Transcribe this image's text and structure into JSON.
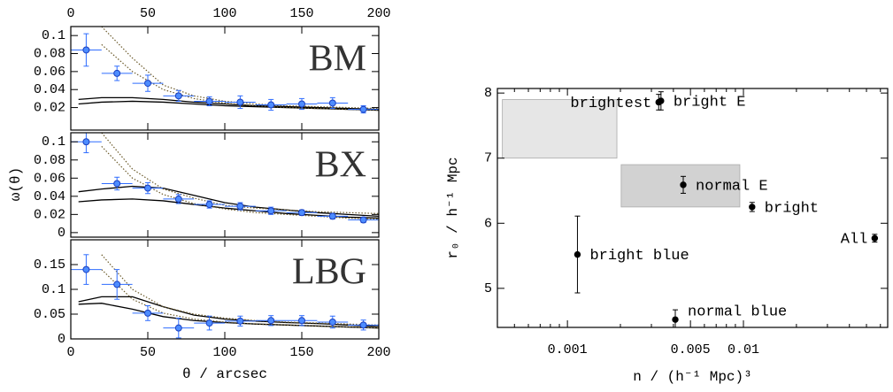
{
  "chart_data": [
    {
      "type": "scatter",
      "panel_label": "BM",
      "xlim": [
        0,
        200
      ],
      "xticks": [
        0,
        50,
        100,
        150,
        200
      ],
      "ylim": [
        -0.005,
        0.11
      ],
      "yticks": [
        0.02,
        0.04,
        0.06,
        0.08,
        0.1
      ],
      "show_top_labels": true,
      "show_bottom_labels": false,
      "points": {
        "color": "#2f6dff",
        "x": [
          10,
          30,
          50,
          70,
          90,
          110,
          130,
          150,
          170,
          190
        ],
        "x_err": [
          10,
          10,
          10,
          10,
          10,
          10,
          10,
          10,
          10,
          10
        ],
        "y": [
          0.084,
          0.058,
          0.047,
          0.033,
          0.027,
          0.026,
          0.023,
          0.024,
          0.025,
          0.018
        ],
        "y_err": [
          0.018,
          0.008,
          0.009,
          0.006,
          0.005,
          0.007,
          0.006,
          0.006,
          0.006,
          0.004
        ]
      },
      "models": [
        {
          "style": "solid",
          "color": "#000000",
          "x": [
            5,
            20,
            40,
            60,
            80,
            100,
            120,
            140,
            160,
            180,
            200
          ],
          "values": [
            0.029,
            0.031,
            0.031,
            0.029,
            0.026,
            0.024,
            0.022,
            0.021,
            0.02,
            0.019,
            0.018
          ]
        },
        {
          "style": "solid",
          "color": "#000000",
          "x": [
            5,
            20,
            40,
            60,
            80,
            100,
            120,
            140,
            160,
            180,
            200
          ],
          "values": [
            0.024,
            0.026,
            0.027,
            0.026,
            0.024,
            0.022,
            0.021,
            0.02,
            0.019,
            0.018,
            0.017
          ]
        },
        {
          "style": "dotted",
          "color": "#6b5a2a",
          "x": [
            5,
            20,
            40,
            60,
            80,
            100,
            120,
            140,
            160,
            180,
            200
          ],
          "values": [
            null,
            0.11,
            0.075,
            0.045,
            0.033,
            0.027,
            0.024,
            0.022,
            0.021,
            0.02,
            0.019
          ]
        },
        {
          "style": "dotted",
          "color": "#6b5a2a",
          "x": [
            5,
            20,
            40,
            60,
            80,
            100,
            120,
            140,
            160,
            180,
            200
          ],
          "values": [
            null,
            0.09,
            0.06,
            0.04,
            0.03,
            0.025,
            0.022,
            0.02,
            0.019,
            0.018,
            0.017
          ]
        }
      ]
    },
    {
      "type": "scatter",
      "panel_label": "BX",
      "y_label": "ω(θ)",
      "xlim": [
        0,
        200
      ],
      "xticks": [
        0,
        50,
        100,
        150,
        200
      ],
      "ylim": [
        -0.005,
        0.11
      ],
      "yticks": [
        0,
        0.02,
        0.04,
        0.06,
        0.08,
        0.1
      ],
      "show_top_labels": false,
      "show_bottom_labels": false,
      "points": {
        "color": "#2f6dff",
        "x": [
          10,
          30,
          50,
          70,
          90,
          110,
          130,
          150,
          170,
          190
        ],
        "x_err": [
          10,
          10,
          10,
          10,
          10,
          10,
          10,
          10,
          10,
          10
        ],
        "y": [
          0.1,
          0.054,
          0.049,
          0.037,
          0.031,
          0.029,
          0.024,
          0.022,
          0.018,
          0.014
        ],
        "y_err": [
          0.012,
          0.007,
          0.006,
          0.005,
          0.004,
          0.004,
          0.004,
          0.003,
          0.003,
          0.003
        ]
      },
      "models": [
        {
          "style": "solid",
          "color": "#000000",
          "x": [
            5,
            20,
            40,
            60,
            80,
            100,
            120,
            140,
            160,
            180,
            200
          ],
          "values": [
            0.045,
            0.048,
            0.051,
            0.049,
            0.041,
            0.033,
            0.028,
            0.025,
            0.022,
            0.02,
            0.018
          ]
        },
        {
          "style": "solid",
          "color": "#000000",
          "x": [
            5,
            20,
            40,
            60,
            80,
            100,
            120,
            140,
            160,
            180,
            200
          ],
          "values": [
            0.034,
            0.036,
            0.037,
            0.035,
            0.031,
            0.027,
            0.024,
            0.021,
            0.019,
            0.017,
            0.016
          ]
        },
        {
          "style": "dotted",
          "color": "#6b5a2a",
          "x": [
            5,
            20,
            40,
            60,
            80,
            100,
            120,
            140,
            160,
            180,
            200
          ],
          "values": [
            null,
            0.11,
            0.07,
            0.048,
            0.038,
            0.03,
            0.027,
            0.025,
            0.023,
            0.022,
            0.021
          ]
        },
        {
          "style": "dotted",
          "color": "#6b5a2a",
          "x": [
            5,
            20,
            40,
            60,
            80,
            100,
            120,
            140,
            160,
            180,
            200
          ],
          "values": [
            null,
            0.095,
            0.06,
            0.042,
            0.032,
            0.026,
            0.022,
            0.02,
            0.018,
            0.016,
            0.015
          ]
        }
      ]
    },
    {
      "type": "scatter",
      "panel_label": "LBG",
      "x_label": "θ / arcsec",
      "xlim": [
        0,
        200
      ],
      "xticks": [
        0,
        50,
        100,
        150,
        200
      ],
      "ylim": [
        0,
        0.2
      ],
      "yticks": [
        0,
        0.05,
        0.1,
        0.15
      ],
      "show_top_labels": false,
      "show_bottom_labels": true,
      "points": {
        "color": "#2f6dff",
        "x": [
          10,
          30,
          50,
          70,
          90,
          110,
          130,
          150,
          170,
          190
        ],
        "x_err": [
          10,
          10,
          10,
          10,
          10,
          10,
          10,
          10,
          10,
          10
        ],
        "y": [
          0.14,
          0.11,
          0.052,
          0.022,
          0.032,
          0.036,
          0.037,
          0.037,
          0.034,
          0.028
        ],
        "y_err": [
          0.03,
          0.03,
          0.015,
          0.02,
          0.014,
          0.01,
          0.01,
          0.01,
          0.012,
          0.01
        ]
      },
      "models": [
        {
          "style": "solid",
          "color": "#000000",
          "x": [
            5,
            20,
            40,
            60,
            80,
            100,
            120,
            140,
            160,
            180,
            200
          ],
          "values": [
            0.075,
            0.085,
            0.085,
            0.065,
            0.048,
            0.04,
            0.036,
            0.033,
            0.031,
            0.028,
            0.025
          ]
        },
        {
          "style": "solid",
          "color": "#000000",
          "x": [
            5,
            20,
            40,
            60,
            80,
            100,
            120,
            140,
            160,
            180,
            200
          ],
          "values": [
            0.07,
            0.072,
            0.06,
            0.045,
            0.037,
            0.033,
            0.03,
            0.028,
            0.026,
            0.024,
            0.022
          ]
        },
        {
          "style": "dotted",
          "color": "#6b5a2a",
          "x": [
            5,
            20,
            40,
            60,
            80,
            100,
            120,
            140,
            160,
            180,
            200
          ],
          "values": [
            null,
            0.17,
            0.1,
            0.065,
            0.05,
            0.042,
            0.037,
            0.034,
            0.032,
            0.03,
            0.028
          ]
        },
        {
          "style": "dotted",
          "color": "#6b5a2a",
          "x": [
            5,
            20,
            40,
            60,
            80,
            100,
            120,
            140,
            160,
            180,
            200
          ],
          "values": [
            null,
            0.14,
            0.08,
            0.052,
            0.04,
            0.034,
            0.03,
            0.028,
            0.026,
            0.024,
            0.022
          ]
        }
      ]
    },
    {
      "type": "scatter",
      "log_x": true,
      "x_label": "n / (h⁻¹ Mpc)³",
      "y_label": "r₀ / h⁻¹ Mpc",
      "xlim": [
        0.0004,
        0.066
      ],
      "xticks": [
        0.001,
        0.005,
        0.01
      ],
      "xminor_ticks": [
        0.0005,
        0.0006,
        0.0007,
        0.0008,
        0.0009,
        0.002,
        0.003,
        0.004,
        0.006,
        0.007,
        0.008,
        0.009,
        0.02,
        0.03,
        0.04,
        0.05,
        0.06
      ],
      "ylim": [
        4.4,
        8.07
      ],
      "yticks": [
        5,
        6,
        7,
        8
      ],
      "show_top_labels": false,
      "show_bottom_labels": true,
      "regions": [
        {
          "color": "#e6e6e6",
          "x": [
            0.000427,
            0.00191
          ],
          "y": [
            7.0,
            7.9
          ]
        },
        {
          "color": "#d2d2d2",
          "x": [
            0.00202,
            0.00954
          ],
          "y": [
            6.25,
            6.9
          ]
        }
      ],
      "points": {
        "color": "#000000",
        "labels": [
          "brightest",
          "bright E",
          "normal E",
          "bright",
          "All",
          "bright blue",
          "normal blue"
        ],
        "x": [
          0.0033,
          0.0034,
          0.00455,
          0.0112,
          0.0557,
          0.00114,
          0.0041
        ],
        "y": [
          7.86,
          7.88,
          6.59,
          6.25,
          5.77,
          5.52,
          4.52
        ],
        "y_err": [
          0.12,
          0.14,
          0.13,
          0.07,
          0.06,
          0.59,
          0.15
        ]
      }
    }
  ]
}
